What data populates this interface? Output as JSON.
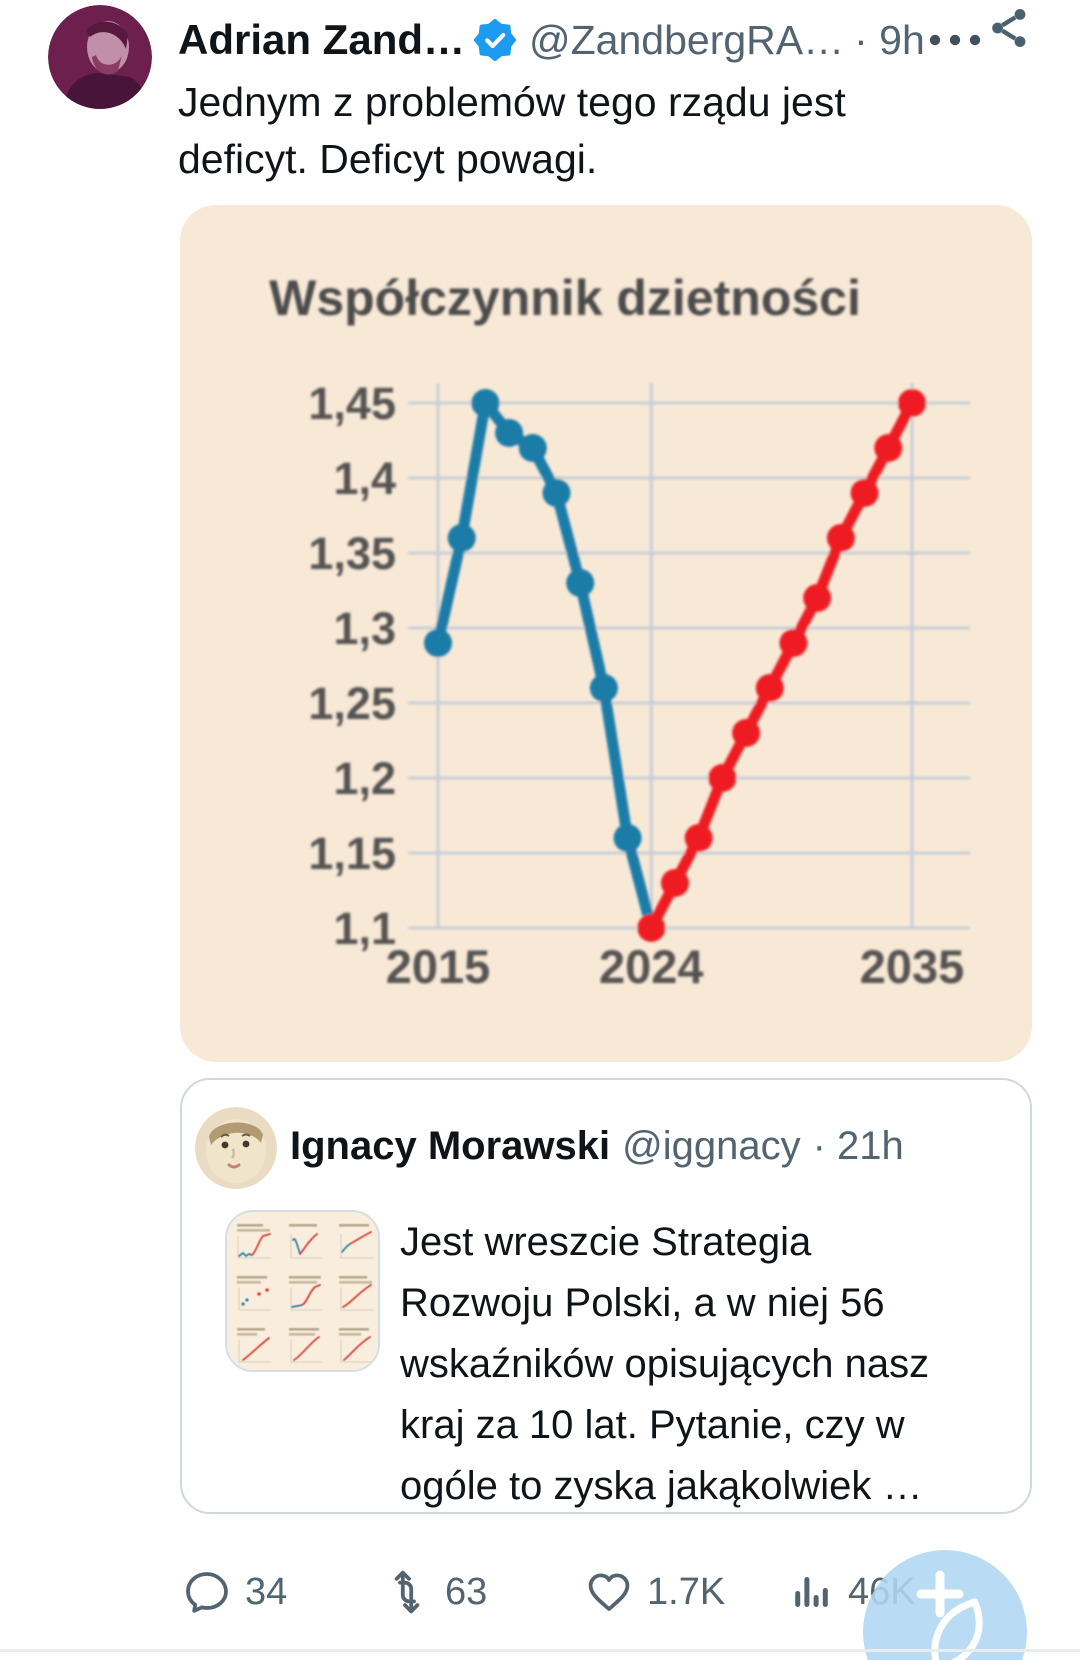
{
  "header": {
    "name": "Adrian Zand…",
    "handle": "@ZandbergRA…",
    "timestamp": "· 9h",
    "verified": true
  },
  "tweet": {
    "text_lines": [
      "Jednym z problemów tego rządu jest",
      "deficyt. Deficyt powagi."
    ]
  },
  "chart_data": {
    "type": "line",
    "title": "Współczynnik dzietności",
    "xlabel": "",
    "ylabel": "",
    "xlim": [
      2015,
      2035
    ],
    "ylim": [
      1.1,
      1.45
    ],
    "grid": true,
    "legend": false,
    "background": "#f8e9d7",
    "gridline_color": "#c6ced6",
    "text_color": "#555251",
    "x_tick_labels": [
      "2015",
      "2024",
      "2035"
    ],
    "x_tick_years": [
      2015,
      2024,
      2035
    ],
    "y_ticks": [
      {
        "label": "1,45",
        "value": 1.45
      },
      {
        "label": "1,4",
        "value": 1.4
      },
      {
        "label": "1,35",
        "value": 1.35
      },
      {
        "label": "1,3",
        "value": 1.3
      },
      {
        "label": "1,25",
        "value": 1.25
      },
      {
        "label": "1,2",
        "value": 1.2
      },
      {
        "label": "1,15",
        "value": 1.15
      },
      {
        "label": "1,1",
        "value": 1.1
      }
    ],
    "series": [
      {
        "name": "historical_blue",
        "color": "#1a7ca8",
        "x": [
          2015,
          2016,
          2017,
          2018,
          2019,
          2020,
          2021,
          2022,
          2023
        ],
        "values": [
          1.29,
          1.36,
          1.45,
          1.43,
          1.42,
          1.39,
          1.33,
          1.26,
          1.16
        ],
        "connects_to_next": true
      },
      {
        "name": "projection_red",
        "color": "#ee1c22",
        "x": [
          2024,
          2025,
          2026,
          2027,
          2028,
          2029,
          2030,
          2031,
          2032,
          2033,
          2034,
          2035
        ],
        "values": [
          1.1,
          1.13,
          1.16,
          1.2,
          1.23,
          1.26,
          1.29,
          1.32,
          1.36,
          1.39,
          1.42,
          1.45
        ]
      }
    ]
  },
  "quoted": {
    "name": "Ignacy Morawski",
    "handle": "@iggnacy",
    "timestamp": "· 21h",
    "text_lines": [
      "Jest wreszcie Strategia",
      "Rozwoju Polski, a w niej 56",
      "wskaźników opisujących nasz",
      "kraj za 10 lat. Pytanie, czy w",
      "ogóle to zyska jakąkolwiek …"
    ]
  },
  "actions": {
    "reply_count": "34",
    "retweet_count": "63",
    "like_count": "1.7K",
    "view_count": "46K"
  },
  "colors": {
    "verified_blue": "#1d9bf0",
    "icon_gray": "#536471",
    "text_primary": "#0f1419",
    "fab_blue": "#b1d6f2",
    "chart_blue": "#1a7ca8",
    "chart_red": "#ee1c22"
  }
}
